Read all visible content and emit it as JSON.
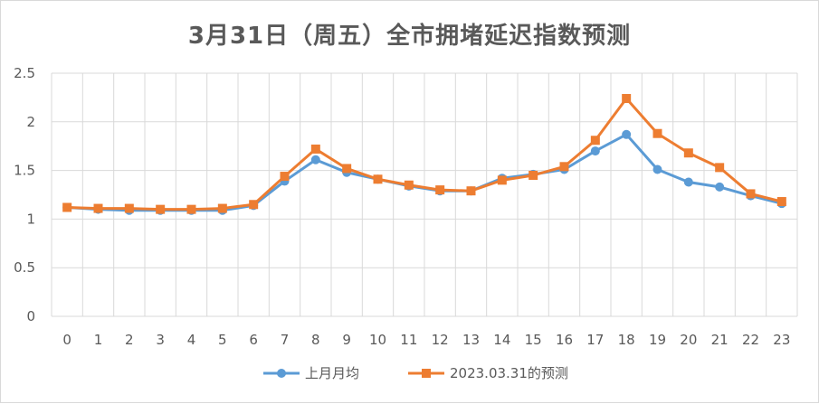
{
  "chart_data": {
    "type": "line",
    "title": "3月31日（周五）全市拥堵延迟指数预测",
    "x": [
      "0",
      "1",
      "2",
      "3",
      "4",
      "5",
      "6",
      "7",
      "8",
      "9",
      "10",
      "11",
      "12",
      "13",
      "14",
      "15",
      "16",
      "17",
      "18",
      "19",
      "20",
      "21",
      "22",
      "23"
    ],
    "ylim": [
      0,
      2.5
    ],
    "yticks": [
      "0",
      "0.5",
      "1",
      "1.5",
      "2",
      "2.5"
    ],
    "grid": true,
    "legend_position": "bottom",
    "series": [
      {
        "name": "上月月均",
        "color": "#5b9bd5",
        "marker": "circle",
        "values": [
          1.12,
          1.1,
          1.09,
          1.09,
          1.09,
          1.09,
          1.14,
          1.39,
          1.61,
          1.48,
          1.41,
          1.34,
          1.29,
          1.29,
          1.42,
          1.46,
          1.51,
          1.7,
          1.87,
          1.51,
          1.38,
          1.33,
          1.24,
          1.16
        ]
      },
      {
        "name": "2023.03.31的预测",
        "color": "#ed7d31",
        "marker": "square",
        "values": [
          1.12,
          1.11,
          1.11,
          1.1,
          1.1,
          1.11,
          1.15,
          1.44,
          1.72,
          1.52,
          1.41,
          1.35,
          1.3,
          1.29,
          1.4,
          1.45,
          1.54,
          1.81,
          2.24,
          1.88,
          1.68,
          1.53,
          1.26,
          1.18
        ]
      }
    ]
  }
}
